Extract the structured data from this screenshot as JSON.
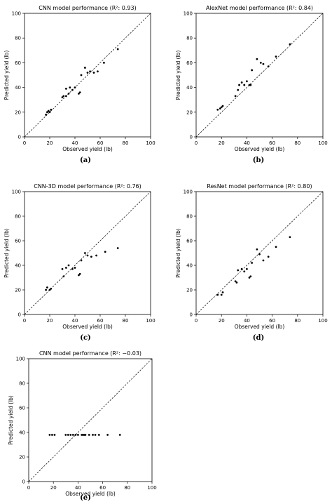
{
  "chart_data": [
    {
      "type": "scatter",
      "panel_label": "(a)",
      "title": "CNN model performance (R²: 0.93)",
      "xlabel": "Observed yield (lb)",
      "ylabel": "Predicted yield (lb)",
      "xlim": [
        0,
        100
      ],
      "ylim": [
        0,
        100
      ],
      "xticks": [
        "0",
        "20",
        "40",
        "60",
        "80",
        "100"
      ],
      "yticks": [
        "0",
        "20",
        "40",
        "60",
        "80",
        "100"
      ],
      "grid": false,
      "reference_line": "y=x dashed",
      "points": [
        [
          17,
          18
        ],
        [
          18,
          20
        ],
        [
          19,
          21
        ],
        [
          20,
          20
        ],
        [
          21,
          22
        ],
        [
          30,
          32
        ],
        [
          31,
          33
        ],
        [
          33,
          33
        ],
        [
          33,
          39
        ],
        [
          35,
          35
        ],
        [
          36,
          40
        ],
        [
          38,
          38
        ],
        [
          40,
          40
        ],
        [
          43,
          35
        ],
        [
          44,
          36
        ],
        [
          45,
          50
        ],
        [
          48,
          56
        ],
        [
          50,
          52
        ],
        [
          52,
          53
        ],
        [
          55,
          52
        ],
        [
          58,
          53
        ],
        [
          63,
          60
        ],
        [
          74,
          71
        ]
      ]
    },
    {
      "type": "scatter",
      "panel_label": "(b)",
      "title": "AlexNet model performance (R²: 0.84)",
      "xlabel": "Observed yield (lb)",
      "ylabel": "Predicted yield (lb)",
      "xlim": [
        0,
        100
      ],
      "ylim": [
        0,
        100
      ],
      "xticks": [
        "0",
        "20",
        "40",
        "60",
        "80",
        "100"
      ],
      "yticks": [
        "0",
        "20",
        "40",
        "60",
        "80",
        "100"
      ],
      "grid": false,
      "reference_line": "y=x dashed",
      "points": [
        [
          17,
          22
        ],
        [
          19,
          23
        ],
        [
          20,
          24
        ],
        [
          21,
          25
        ],
        [
          31,
          33
        ],
        [
          33,
          38
        ],
        [
          34,
          42
        ],
        [
          36,
          44
        ],
        [
          38,
          42
        ],
        [
          40,
          45
        ],
        [
          42,
          42
        ],
        [
          43,
          42
        ],
        [
          44,
          54
        ],
        [
          48,
          63
        ],
        [
          51,
          60
        ],
        [
          53,
          59
        ],
        [
          57,
          57
        ],
        [
          63,
          65
        ],
        [
          74,
          75
        ]
      ]
    },
    {
      "type": "scatter",
      "panel_label": "(c)",
      "title": "CNN-3D model performance (R²: 0.76)",
      "xlabel": "Observed yield (lb)",
      "ylabel": "Predicted yield (lb)",
      "xlim": [
        0,
        100
      ],
      "ylim": [
        0,
        100
      ],
      "xticks": [
        "0",
        "20",
        "40",
        "60",
        "80",
        "100"
      ],
      "yticks": [
        "0",
        "20",
        "40",
        "60",
        "80",
        "100"
      ],
      "grid": false,
      "reference_line": "y=x dashed",
      "points": [
        [
          17,
          20
        ],
        [
          18,
          22
        ],
        [
          20,
          20
        ],
        [
          21,
          21
        ],
        [
          30,
          37
        ],
        [
          31,
          31
        ],
        [
          33,
          38
        ],
        [
          35,
          40
        ],
        [
          38,
          37
        ],
        [
          40,
          38
        ],
        [
          43,
          32
        ],
        [
          44,
          33
        ],
        [
          45,
          44
        ],
        [
          48,
          50
        ],
        [
          50,
          48
        ],
        [
          53,
          47
        ],
        [
          57,
          48
        ],
        [
          64,
          51
        ],
        [
          74,
          54
        ]
      ]
    },
    {
      "type": "scatter",
      "panel_label": "(d)",
      "title": "ResNet model performance (R²: 0.80)",
      "xlabel": "Observed yield (lb)",
      "ylabel": "Predicted yield (lb)",
      "xlim": [
        0,
        100
      ],
      "ylim": [
        0,
        100
      ],
      "xticks": [
        "0",
        "20",
        "40",
        "60",
        "80",
        "100"
      ],
      "yticks": [
        "0",
        "20",
        "40",
        "60",
        "80",
        "100"
      ],
      "grid": false,
      "reference_line": "y=x dashed",
      "points": [
        [
          17,
          16
        ],
        [
          20,
          16
        ],
        [
          21,
          18
        ],
        [
          31,
          27
        ],
        [
          32,
          26
        ],
        [
          33,
          36
        ],
        [
          36,
          37
        ],
        [
          38,
          35
        ],
        [
          40,
          37
        ],
        [
          42,
          30
        ],
        [
          43,
          31
        ],
        [
          44,
          42
        ],
        [
          48,
          53
        ],
        [
          50,
          49
        ],
        [
          53,
          44
        ],
        [
          57,
          47
        ],
        [
          63,
          55
        ],
        [
          74,
          63
        ]
      ]
    },
    {
      "type": "scatter",
      "panel_label": "(e)",
      "title": "CNN model performance (R²: −0.03)",
      "xlabel": "Observed yield (lb)",
      "ylabel": "Predicted yield (lb)",
      "xlim": [
        0,
        100
      ],
      "ylim": [
        0,
        100
      ],
      "xticks": [
        "0",
        "20",
        "40",
        "60",
        "80",
        "100"
      ],
      "yticks": [
        "0",
        "20",
        "40",
        "60",
        "80",
        "100"
      ],
      "grid": false,
      "reference_line": "y=x dashed",
      "points": [
        [
          17,
          38
        ],
        [
          19,
          38
        ],
        [
          21,
          38
        ],
        [
          30,
          38
        ],
        [
          32,
          38
        ],
        [
          34,
          38
        ],
        [
          36,
          38
        ],
        [
          38,
          38
        ],
        [
          40,
          38
        ],
        [
          43,
          38
        ],
        [
          44,
          38
        ],
        [
          45,
          38
        ],
        [
          46,
          38
        ],
        [
          49,
          38
        ],
        [
          52,
          38
        ],
        [
          54,
          38
        ],
        [
          57,
          38
        ],
        [
          64,
          38
        ],
        [
          74,
          38
        ]
      ]
    }
  ]
}
